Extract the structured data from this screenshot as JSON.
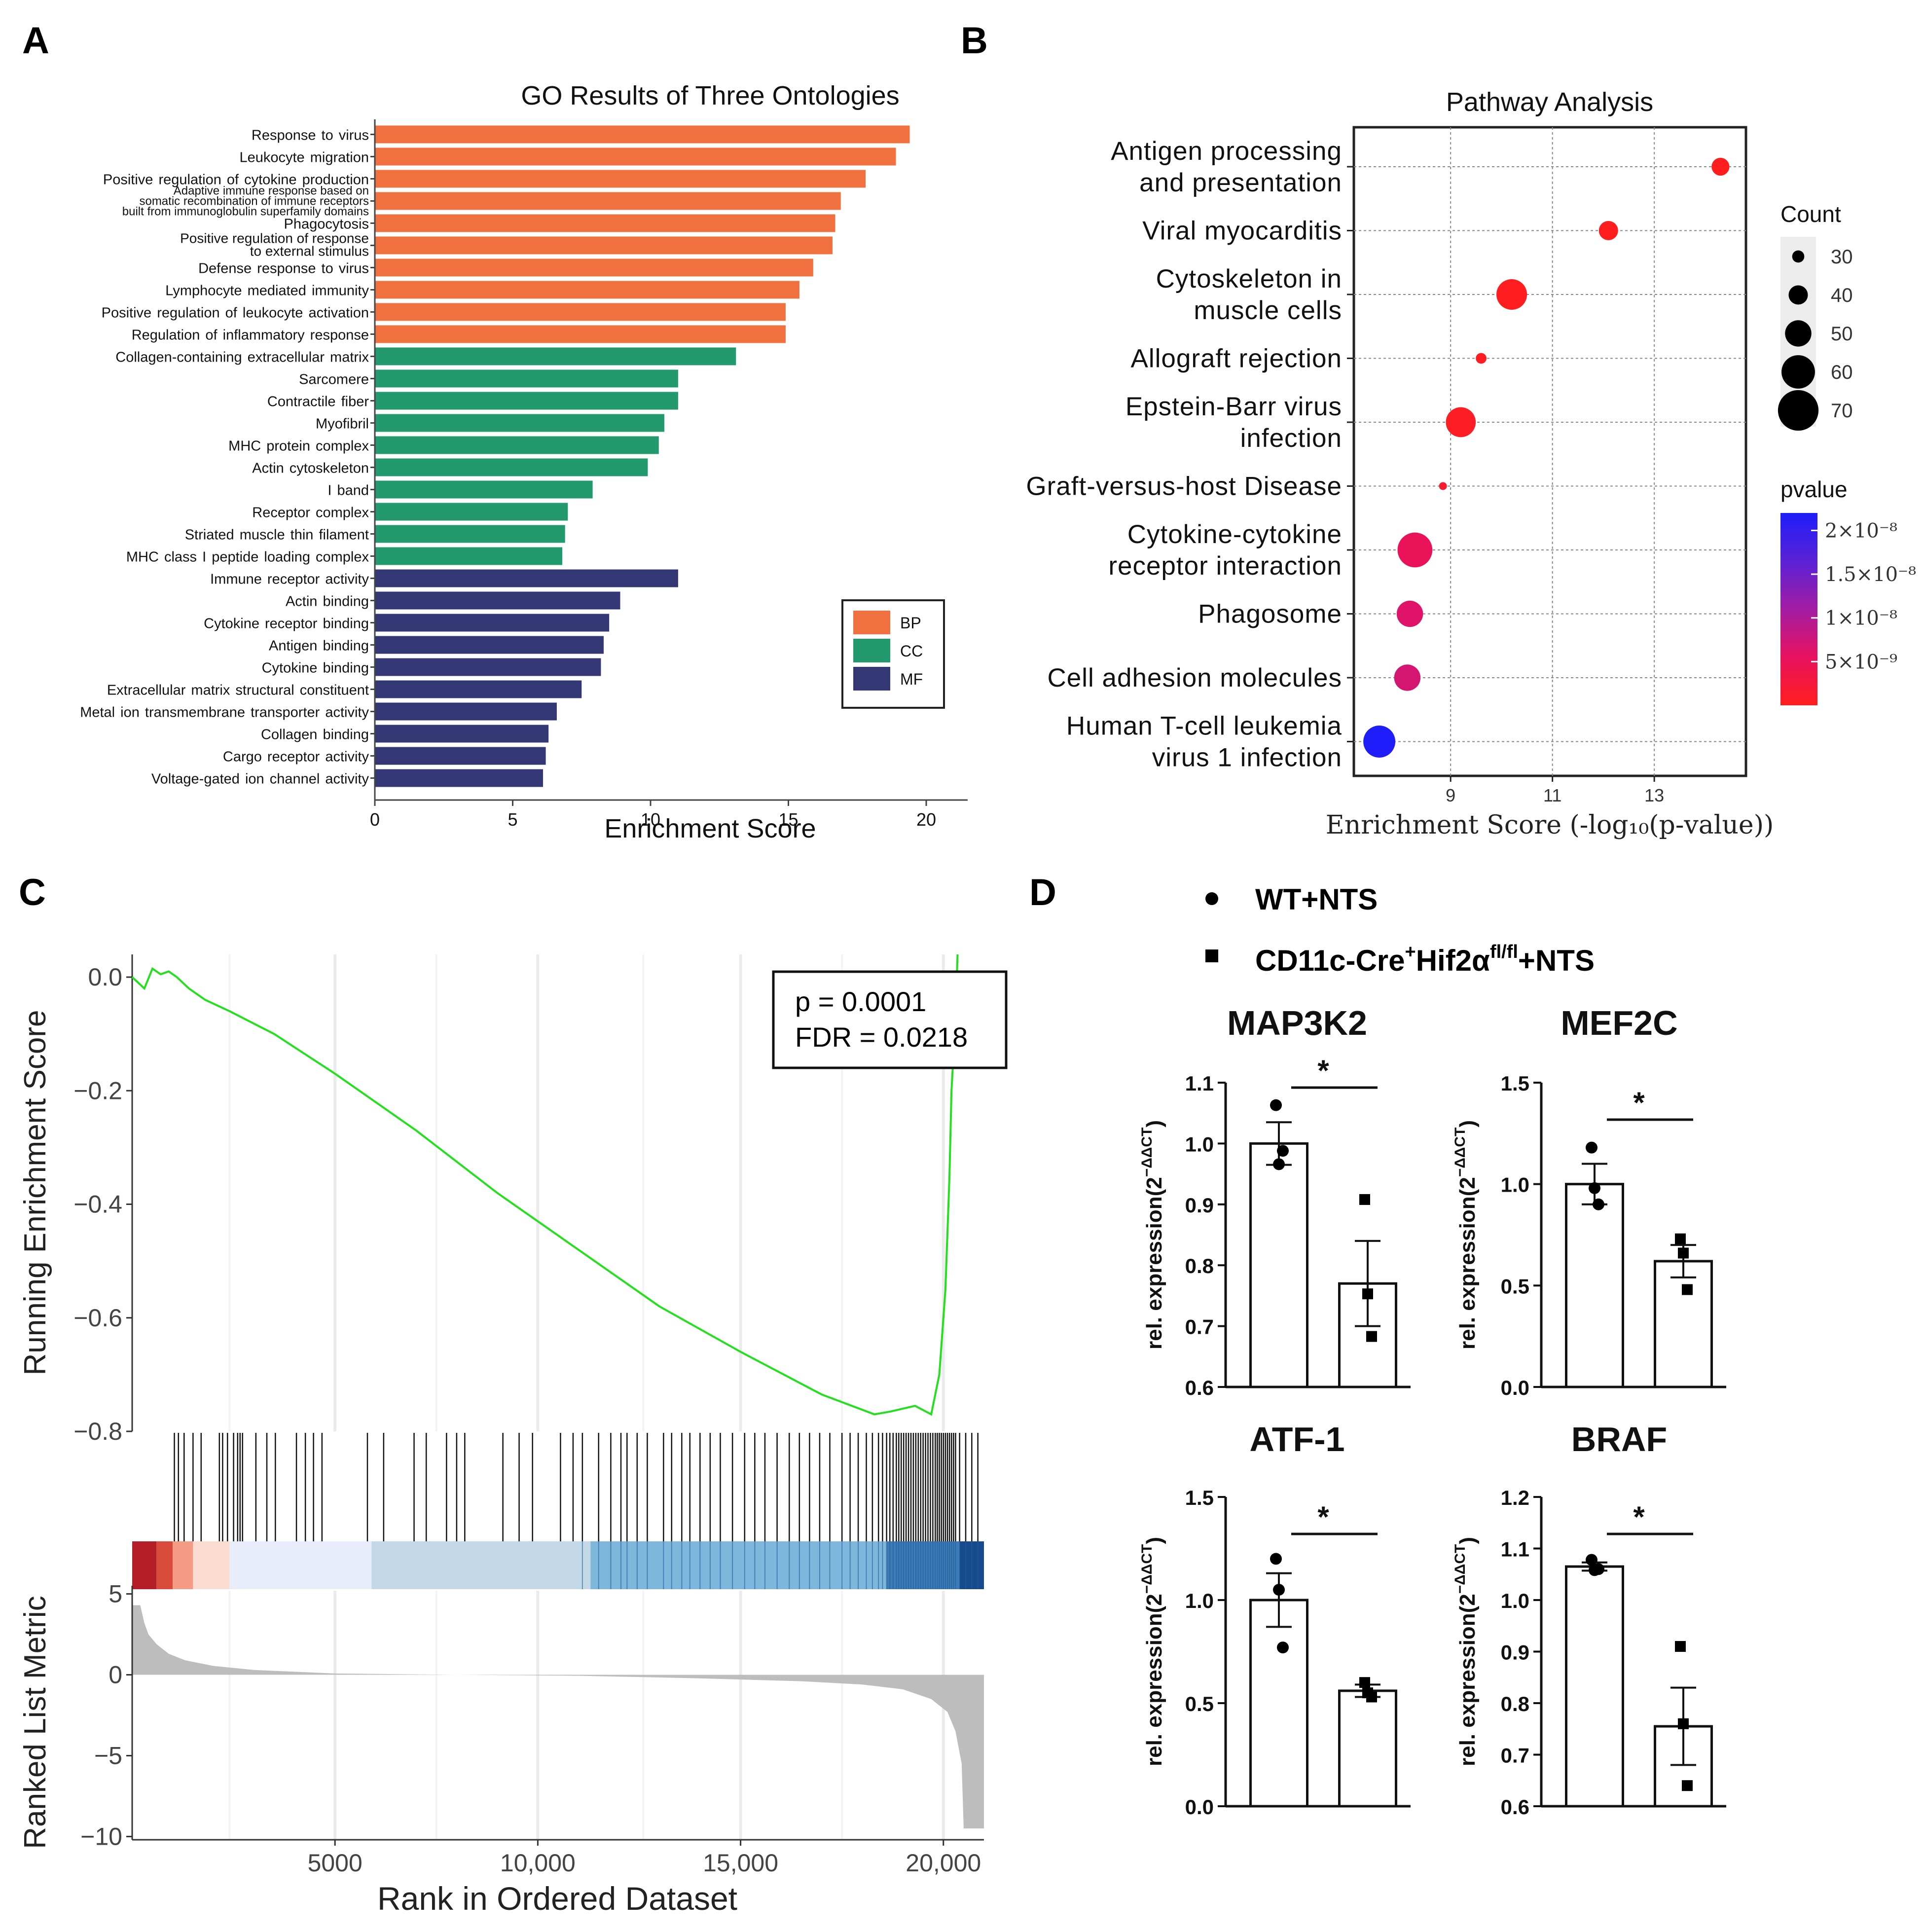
{
  "panel_letters": [
    "A",
    "B",
    "C",
    "D"
  ],
  "chart_data": [
    {
      "id": "A",
      "type": "bar",
      "orientation": "horizontal",
      "title": "GO Results of Three Ontologies",
      "xlabel": "Enrichment Score",
      "ylabel": "",
      "xlim": [
        0,
        21.5
      ],
      "xticks": [
        0,
        5,
        10,
        15,
        20
      ],
      "legend": {
        "position": "bottom-right",
        "entries": [
          {
            "label": "BP",
            "color": "#f0703f"
          },
          {
            "label": "CC",
            "color": "#239a6d"
          },
          {
            "label": "MF",
            "color": "#333874"
          }
        ]
      },
      "bars": [
        {
          "label": "Response to virus",
          "group": "BP",
          "value": 19.4
        },
        {
          "label": "Leukocyte migration",
          "group": "BP",
          "value": 18.9
        },
        {
          "label": "Positive regulation of cytokine production",
          "group": "BP",
          "value": 17.8
        },
        {
          "label": "Adaptive immune response based on somatic recombination of immune receptors built from immunoglobulin superfamily domains",
          "label_lines": [
            "Adaptive immune response based on",
            "somatic recombination of immune receptors",
            "built from immunoglobulin superfamily domains"
          ],
          "group": "BP",
          "value": 16.9
        },
        {
          "label": "Phagocytosis",
          "group": "BP",
          "value": 16.7
        },
        {
          "label": "Positive regulation of response to external stimulus",
          "label_lines": [
            "Positive regulation of response",
            "to external stimulus"
          ],
          "group": "BP",
          "value": 16.6
        },
        {
          "label": "Defense response to virus",
          "group": "BP",
          "value": 15.9
        },
        {
          "label": "Lymphocyte mediated immunity",
          "group": "BP",
          "value": 15.4
        },
        {
          "label": "Positive regulation of leukocyte activation",
          "group": "BP",
          "value": 14.9
        },
        {
          "label": "Regulation of inflammatory response",
          "group": "BP",
          "value": 14.9
        },
        {
          "label": "Collagen-containing extracellular matrix",
          "group": "CC",
          "value": 13.1
        },
        {
          "label": "Sarcomere",
          "group": "CC",
          "value": 11.0
        },
        {
          "label": "Contractile fiber",
          "group": "CC",
          "value": 11.0
        },
        {
          "label": "Myofibril",
          "group": "CC",
          "value": 10.5
        },
        {
          "label": "MHC protein complex",
          "group": "CC",
          "value": 10.3
        },
        {
          "label": "Actin cytoskeleton",
          "group": "CC",
          "value": 9.9
        },
        {
          "label": "I band",
          "group": "CC",
          "value": 7.9
        },
        {
          "label": "Receptor complex",
          "group": "CC",
          "value": 7.0
        },
        {
          "label": "Striated muscle thin filament",
          "group": "CC",
          "value": 6.9
        },
        {
          "label": "MHC class I peptide loading complex",
          "group": "CC",
          "value": 6.8
        },
        {
          "label": "Immune receptor activity",
          "group": "MF",
          "value": 11.0
        },
        {
          "label": "Actin binding",
          "group": "MF",
          "value": 8.9
        },
        {
          "label": "Cytokine receptor binding",
          "group": "MF",
          "value": 8.5
        },
        {
          "label": "Antigen binding",
          "group": "MF",
          "value": 8.3
        },
        {
          "label": "Cytokine binding",
          "group": "MF",
          "value": 8.2
        },
        {
          "label": "Extracellular matrix structural constituent",
          "group": "MF",
          "value": 7.5
        },
        {
          "label": "Metal ion transmembrane transporter activity",
          "group": "MF",
          "value": 6.6
        },
        {
          "label": "Collagen binding",
          "group": "MF",
          "value": 6.3
        },
        {
          "label": "Cargo receptor activity",
          "group": "MF",
          "value": 6.2
        },
        {
          "label": "Voltage-gated ion channel activity",
          "group": "MF",
          "value": 6.1
        }
      ]
    },
    {
      "id": "B",
      "type": "scatter",
      "subtype": "dot-plot",
      "title": "Pathway Analysis",
      "xlabel": "Enrichment Score (-log₁₀(p-value))",
      "xlim": [
        7.1,
        14.8
      ],
      "xticks": [
        9,
        11,
        13
      ],
      "grid": true,
      "size_legend": {
        "title": "Count",
        "values": [
          30,
          40,
          50,
          60,
          70
        ]
      },
      "color_legend": {
        "title": "pvalue",
        "tick_labels": [
          "2×10⁻⁸",
          "1.5×10⁻⁸",
          "1×10⁻⁸",
          "5×10⁻⁹"
        ],
        "ticks": [
          2e-08,
          1.5e-08,
          1e-08,
          5e-09
        ],
        "range": [
          0,
          2.2e-08
        ],
        "colors": [
          "#ff1e1e",
          "#e8125f",
          "#a31ca3",
          "#5a22d6",
          "#1f1dfa"
        ]
      },
      "points": [
        {
          "pathway": "Antigen processing and presentation",
          "label_lines": [
            "Antigen processing",
            "and presentation"
          ],
          "x": 14.3,
          "count": 38,
          "pvalue": 5e-15
        },
        {
          "pathway": "Viral myocarditis",
          "label_lines": [
            "Viral  myocarditis"
          ],
          "x": 12.1,
          "count": 40,
          "pvalue": 7e-13
        },
        {
          "pathway": "Cytoskeleton in muscle cells",
          "label_lines": [
            "Cytoskeleton  in",
            "muscle cells"
          ],
          "x": 10.2,
          "count": 56,
          "pvalue": 6e-11
        },
        {
          "pathway": "Allograft rejection",
          "label_lines": [
            "Allograft  rejection"
          ],
          "x": 9.6,
          "count": 28,
          "pvalue": 2.5e-10
        },
        {
          "pathway": "Epstein-Barr virus infection",
          "label_lines": [
            "Epstein-Barr  virus",
            "infection"
          ],
          "x": 9.2,
          "count": 55,
          "pvalue": 6e-10
        },
        {
          "pathway": "Graft-versus-host Disease",
          "label_lines": [
            "Graft-versus-host  Disease"
          ],
          "x": 8.85,
          "count": 24,
          "pvalue": 1.4e-09
        },
        {
          "pathway": "Cytokine-cytokine receptor interaction",
          "label_lines": [
            "Cytokine-cytokine",
            "receptor interaction"
          ],
          "x": 8.3,
          "count": 62,
          "pvalue": 5e-09
        },
        {
          "pathway": "Phagosome",
          "label_lines": [
            "Phagosome"
          ],
          "x": 8.2,
          "count": 50,
          "pvalue": 6.3e-09
        },
        {
          "pathway": "Cell adhesion molecules",
          "label_lines": [
            "Cell  adhesion  molecules"
          ],
          "x": 8.15,
          "count": 50,
          "pvalue": 7e-09
        },
        {
          "pathway": "Human T-cell leukemia virus 1 infection",
          "label_lines": [
            "Human  T-cell  leukemia",
            "virus  1  infection"
          ],
          "x": 7.6,
          "count": 58,
          "pvalue": 2.2e-08
        }
      ]
    },
    {
      "id": "C",
      "type": "line",
      "subtype": "GSEA enrichment plot",
      "ylabel": "Running Enrichment Score",
      "ylabel2": "Ranked List Metric",
      "xlabel": "Rank in Ordered Dataset",
      "xlim": [
        0,
        21000
      ],
      "xticks": [
        5000,
        10000,
        15000,
        20000
      ],
      "xtick_labels": [
        "5000",
        "10,000",
        "15,000",
        "20,000"
      ],
      "ylim": [
        -0.8,
        0.04
      ],
      "yticks": [
        0.0,
        -0.2,
        -0.4,
        -0.6,
        -0.8
      ],
      "ytick_labels": [
        "0.0",
        "−0.2",
        "−0.4",
        "−0.6",
        "−0.8"
      ],
      "annotation": {
        "p_text": "p = 0.0001",
        "fdr_text": "FDR = 0.0218"
      },
      "running_es": {
        "x": [
          0,
          300,
          500,
          700,
          900,
          1100,
          1400,
          1800,
          2400,
          3500,
          5000,
          7000,
          9000,
          11000,
          13000,
          15000,
          17000,
          18300,
          18700,
          19300,
          19700,
          19900,
          20050,
          20150,
          20200,
          20300,
          20350
        ],
        "y": [
          0.0,
          -0.02,
          0.015,
          0.005,
          0.01,
          0.0,
          -0.02,
          -0.04,
          -0.06,
          -0.1,
          -0.17,
          -0.27,
          -0.38,
          -0.48,
          -0.58,
          -0.66,
          -0.735,
          -0.77,
          -0.765,
          -0.755,
          -0.77,
          -0.7,
          -0.55,
          -0.35,
          -0.2,
          -0.07,
          0.04
        ]
      },
      "hits": [
        1040,
        1140,
        1280,
        1500,
        1700,
        2150,
        2230,
        2350,
        2500,
        2600,
        2660,
        2720,
        3050,
        3320,
        3530,
        4050,
        4270,
        4470,
        4680,
        5800,
        6200,
        6950,
        7250,
        7750,
        8000,
        8200,
        9140,
        9540,
        9870,
        10560,
        10870,
        11100,
        11500,
        11800,
        12050,
        12200,
        12450,
        12700,
        13100,
        13300,
        13550,
        13750,
        14000,
        14250,
        14500,
        14800,
        15100,
        15350,
        15600,
        15900,
        16200,
        16450,
        16700,
        16950,
        17200,
        17500,
        17700,
        17900,
        18100,
        18250,
        18400,
        18500,
        18600,
        18680,
        18760,
        18840,
        18900,
        18960,
        19020,
        19080,
        19140,
        19200,
        19260,
        19320,
        19380,
        19440,
        19500,
        19560,
        19620,
        19680,
        19740,
        19800,
        19850,
        19900,
        19950,
        20000,
        20050,
        20100,
        20150,
        20200,
        20250,
        20300,
        20400,
        20550,
        20700,
        20850
      ],
      "heatmap_bands": [
        {
          "from": 0,
          "to": 600,
          "color": "#b51e26"
        },
        {
          "from": 600,
          "to": 1000,
          "color": "#d84a3a"
        },
        {
          "from": 1000,
          "to": 1500,
          "color": "#f39b83"
        },
        {
          "from": 1500,
          "to": 2400,
          "color": "#fbdcd0"
        },
        {
          "from": 2400,
          "to": 5900,
          "color": "#e9edfa"
        },
        {
          "from": 5900,
          "to": 11300,
          "color": "#c3d9e8"
        },
        {
          "from": 11300,
          "to": 18600,
          "color": "#7fb6dc"
        },
        {
          "from": 18600,
          "to": 20400,
          "color": "#3d7bb6"
        },
        {
          "from": 20400,
          "to": 21000,
          "color": "#174a8c"
        }
      ],
      "ranked_metric": {
        "ylim": [
          -10.2,
          5.2
        ],
        "yticks": [
          5,
          0,
          -5,
          -10
        ],
        "ytick_labels": [
          "5",
          "0",
          "−5",
          "−10"
        ],
        "x": [
          0,
          200,
          300,
          400,
          600,
          900,
          1300,
          2000,
          3000,
          5000,
          8000,
          11000,
          14000,
          16500,
          18000,
          19000,
          19700,
          20100,
          20300,
          20450,
          20500,
          20600,
          21000
        ],
        "y": [
          4.3,
          4.3,
          3.2,
          2.5,
          1.9,
          1.3,
          0.9,
          0.55,
          0.3,
          0.08,
          0.0,
          -0.06,
          -0.22,
          -0.4,
          -0.6,
          -0.9,
          -1.5,
          -2.3,
          -3.5,
          -5.5,
          -9.5,
          -9.5,
          -9.5
        ]
      }
    },
    {
      "id": "D",
      "type": "bar",
      "subtype": "bar with scatter points and SEM",
      "legend": [
        {
          "marker": "circle",
          "label": "WT+NTS"
        },
        {
          "marker": "square",
          "label_parts": [
            "CD11c-Cre",
            "+",
            "Hif2α",
            "fl/fl",
            "+NTS"
          ]
        }
      ],
      "ylabel_parts": [
        "rel. expression(2",
        "−ΔΔCT",
        ")"
      ],
      "significance": "*",
      "subplots": [
        {
          "title": "MAP3K2",
          "ylim": [
            0.6,
            1.1
          ],
          "yticks": [
            0.6,
            0.7,
            0.8,
            0.9,
            1.0,
            1.1
          ],
          "ytick_labels": [
            "0.6",
            "0.7",
            "0.8",
            "0.9",
            "1.0",
            "1.1"
          ],
          "bars": [
            {
              "group": "WT+NTS",
              "mean": 1.0,
              "sem": 0.035,
              "points": [
                1.063,
                0.966,
                0.988
              ]
            },
            {
              "group": "CD11c-Cre+Hif2αfl/fl+NTS",
              "mean": 0.77,
              "sem": 0.07,
              "points": [
                0.908,
                0.753,
                0.683
              ]
            }
          ]
        },
        {
          "title": "MEF2C",
          "ylim": [
            0.0,
            1.5
          ],
          "yticks": [
            0.0,
            0.5,
            1.0,
            1.5
          ],
          "ytick_labels": [
            "0.0",
            "0.5",
            "1.0",
            "1.5"
          ],
          "bars": [
            {
              "group": "WT+NTS",
              "mean": 1.0,
              "sem": 0.1,
              "points": [
                1.18,
                0.98,
                0.9
              ]
            },
            {
              "group": "CD11c-Cre+Hif2αfl/fl+NTS",
              "mean": 0.62,
              "sem": 0.08,
              "points": [
                0.73,
                0.66,
                0.48
              ]
            }
          ]
        },
        {
          "title": "ATF-1",
          "ylim": [
            0.0,
            1.5
          ],
          "yticks": [
            0.0,
            0.5,
            1.0,
            1.5
          ],
          "ytick_labels": [
            "0.0",
            "0.5",
            "1.0",
            "1.5"
          ],
          "bars": [
            {
              "group": "WT+NTS",
              "mean": 1.0,
              "sem": 0.13,
              "points": [
                1.2,
                1.05,
                0.77
              ]
            },
            {
              "group": "CD11c-Cre+Hif2αfl/fl+NTS",
              "mean": 0.56,
              "sem": 0.03,
              "points": [
                0.6,
                0.55,
                0.53
              ]
            }
          ]
        },
        {
          "title": "BRAF",
          "ylim": [
            0.6,
            1.2
          ],
          "yticks": [
            0.6,
            0.7,
            0.8,
            0.9,
            1.0,
            1.1,
            1.2
          ],
          "ytick_labels": [
            "0.6",
            "0.7",
            "0.8",
            "0.9",
            "1.0",
            "1.1",
            "1.2"
          ],
          "bars": [
            {
              "group": "WT+NTS",
              "mean": 1.065,
              "sem": 0.008,
              "points": [
                1.078,
                1.058,
                1.06
              ]
            },
            {
              "group": "CD11c-Cre+Hif2αfl/fl+NTS",
              "mean": 0.755,
              "sem": 0.075,
              "points": [
                0.91,
                0.76,
                0.64
              ]
            }
          ]
        }
      ]
    }
  ]
}
